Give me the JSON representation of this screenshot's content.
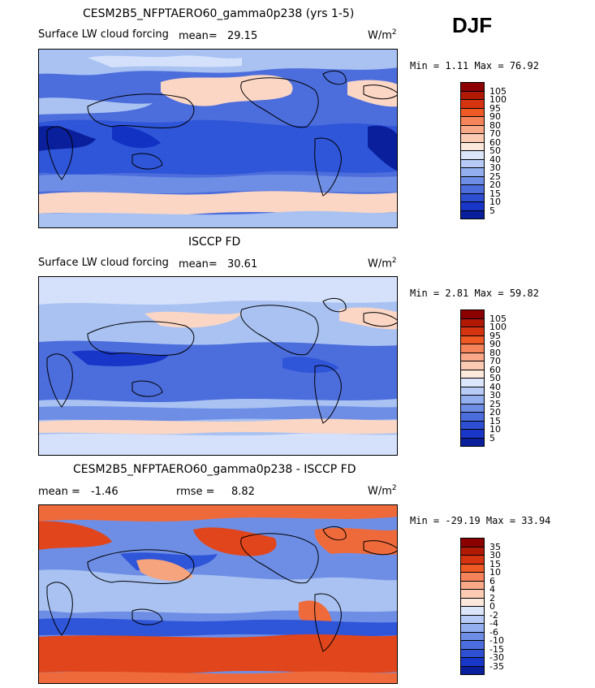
{
  "season": "DJF",
  "units": "W/m",
  "units_exp": "2",
  "panels": [
    {
      "title": "CESM2B5_NFPTAERO60_gamma0p238 (yrs 1-5)",
      "variable": "Surface LW cloud forcing",
      "mean_label": "mean=",
      "mean": "29.15",
      "minmax": "Min =   1.11 Max =  76.92"
    },
    {
      "title": "ISCCP FD",
      "variable": "Surface LW cloud forcing",
      "mean_label": "mean=",
      "mean": "30.61",
      "minmax": "Min =   2.81 Max =  59.82"
    },
    {
      "title": "CESM2B5_NFPTAERO60_gamma0p238 - ISCCP FD",
      "mean_label": "mean =",
      "mean": "-1.46",
      "rmse_label": "rmse =",
      "rmse": "8.82",
      "minmax": "Min = -29.19 Max =  33.94"
    }
  ],
  "colorbar_abs": {
    "levels": [
      "105",
      "100",
      "95",
      "90",
      "80",
      "70",
      "60",
      "50",
      "40",
      "30",
      "25",
      "20",
      "15",
      "10",
      "5"
    ],
    "colors": [
      "#8b0000",
      "#b01a05",
      "#d63410",
      "#ef5a24",
      "#f6845a",
      "#f9a888",
      "#fbcab3",
      "#fde8dc",
      "#dce6fb",
      "#b8cbf6",
      "#93aff0",
      "#6e8ee6",
      "#4c6ddc",
      "#2f4fd2",
      "#1836c8",
      "#0a1f9c"
    ]
  },
  "colorbar_diff": {
    "levels": [
      "35",
      "30",
      "15",
      "10",
      "6",
      "4",
      "2",
      "0",
      "-2",
      "-4",
      "-6",
      "-10",
      "-15",
      "-30",
      "-35"
    ],
    "colors": [
      "#8b0000",
      "#b01a05",
      "#d63410",
      "#ef5a24",
      "#f6845a",
      "#f9a888",
      "#fbcab3",
      "#fde8dc",
      "#dce6fb",
      "#b8cbf6",
      "#93aff0",
      "#6e8ee6",
      "#4c6ddc",
      "#2f4fd2",
      "#1836c8",
      "#0a1f9c"
    ]
  },
  "map_palette": {
    "deep_blue": "#1232c4",
    "blue": "#2f55d8",
    "mid_blue": "#5f86e6",
    "light_blue": "#a9c2f2",
    "pale_blue": "#d5e1fb",
    "pale_pink": "#fbd6c4",
    "light_orange": "#f6a47d",
    "orange": "#ef6a3a",
    "red_orange": "#e0451c",
    "coast": "#000000"
  }
}
